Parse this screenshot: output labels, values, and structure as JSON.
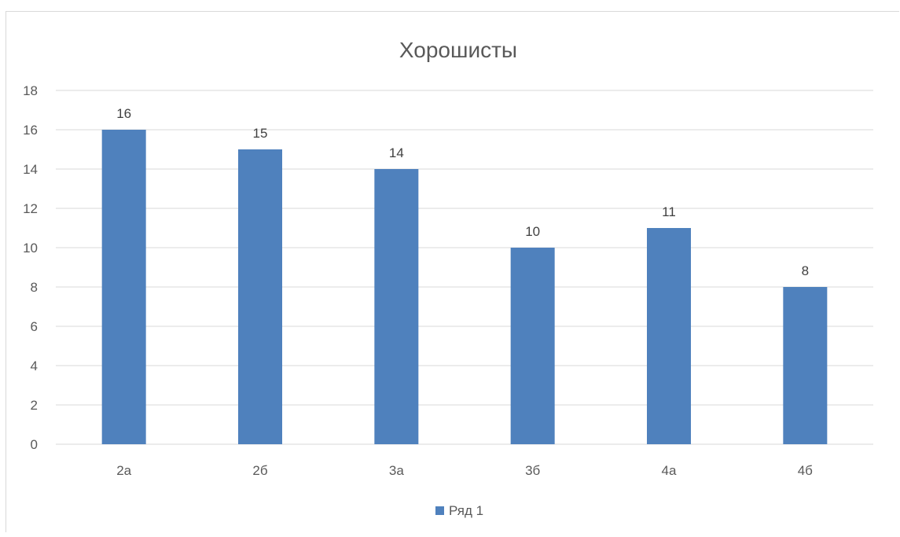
{
  "chart_data": {
    "type": "bar",
    "title": "Хорошисты",
    "categories": [
      "2а",
      "2б",
      "3а",
      "3б",
      "4а",
      "4б"
    ],
    "series": [
      {
        "name": "Ряд 1",
        "values": [
          16,
          15,
          14,
          10,
          11,
          8
        ],
        "color": "#4f81bd"
      }
    ],
    "ylim": [
      0,
      18
    ],
    "yticks": [
      0,
      2,
      4,
      6,
      8,
      10,
      12,
      14,
      16,
      18
    ],
    "xlabel": "",
    "ylabel": "",
    "grid": true,
    "data_labels": true,
    "legend_position": "bottom"
  },
  "colors": {
    "bar": "#4f81bd",
    "grid": "#d9d9d9",
    "text": "#595959",
    "label": "#404040"
  }
}
